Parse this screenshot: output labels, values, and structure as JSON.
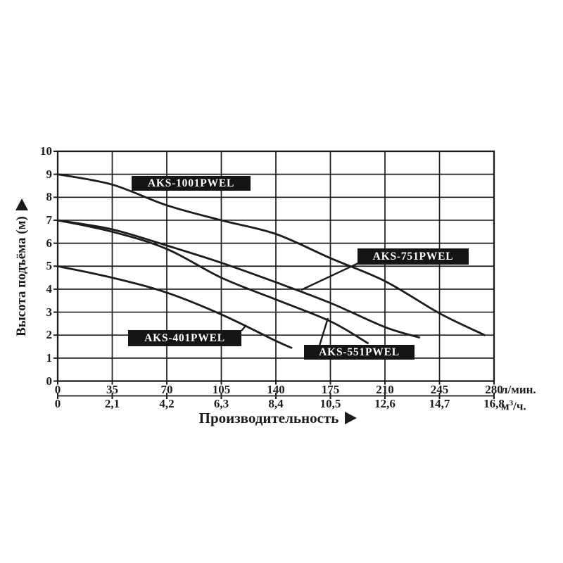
{
  "chart_data": {
    "type": "line",
    "description": "Pump performance curves: head (m) vs flow for AKS PWEL submersible pumps",
    "x_axis": {
      "title": "Производительность",
      "tick_values_lmin": [
        0,
        35,
        70,
        105,
        140,
        175,
        210,
        245,
        280
      ],
      "primary_tick_labels": [
        "0",
        "35",
        "70",
        "105",
        "140",
        "175",
        "210",
        "245",
        "280"
      ],
      "primary_unit": "л/мин.",
      "secondary_tick_labels": [
        "0",
        "2,1",
        "4,2",
        "6,3",
        "8,4",
        "10,5",
        "12,6",
        "14,7",
        "16,8"
      ],
      "secondary_unit": {
        "base": "м",
        "sup": "3",
        "rest": "/ч."
      },
      "range_lmin": [
        0,
        280
      ]
    },
    "y_axis": {
      "title": "Высота подъёма (м)",
      "tick_values_m": [
        10,
        9,
        8,
        7,
        6,
        5,
        4,
        3,
        2,
        1,
        0
      ],
      "tick_labels": [
        "10",
        "9",
        "8",
        "7",
        "6",
        "5",
        "4",
        "3",
        "2",
        "1",
        "0"
      ],
      "range_m": [
        0,
        10
      ]
    },
    "grid": true,
    "legend_position": "labels-on-plot",
    "series": [
      {
        "name": "AKS-1001PWEL",
        "points_lmin_m": [
          [
            0,
            9.0
          ],
          [
            35,
            8.55
          ],
          [
            70,
            7.65
          ],
          [
            105,
            7.0
          ],
          [
            140,
            6.4
          ],
          [
            175,
            5.35
          ],
          [
            210,
            4.35
          ],
          [
            245,
            2.95
          ],
          [
            274,
            2.0
          ]
        ]
      },
      {
        "name": "AKS-751PWEL",
        "points_lmin_m": [
          [
            0,
            7.0
          ],
          [
            35,
            6.6
          ],
          [
            70,
            5.9
          ],
          [
            105,
            5.15
          ],
          [
            140,
            4.3
          ],
          [
            175,
            3.4
          ],
          [
            210,
            2.35
          ],
          [
            232,
            1.9
          ]
        ]
      },
      {
        "name": "AKS-551PWEL",
        "points_lmin_m": [
          [
            0,
            7.0
          ],
          [
            35,
            6.5
          ],
          [
            70,
            5.75
          ],
          [
            105,
            4.5
          ],
          [
            140,
            3.55
          ],
          [
            175,
            2.6
          ],
          [
            199,
            1.65
          ]
        ]
      },
      {
        "name": "AKS-401PWEL",
        "points_lmin_m": [
          [
            0,
            5.0
          ],
          [
            35,
            4.5
          ],
          [
            70,
            3.85
          ],
          [
            105,
            2.9
          ],
          [
            140,
            1.75
          ],
          [
            150,
            1.45
          ]
        ]
      }
    ]
  },
  "icons": {
    "x_axis_arrow": "right-arrow",
    "y_axis_arrow": "up-arrow"
  },
  "colors": {
    "curve": "#1c1c1c",
    "grid": "#1c1c1c",
    "series_label_bg": "#151515",
    "series_label_fg": "#ffffff",
    "background": "#ffffff"
  }
}
